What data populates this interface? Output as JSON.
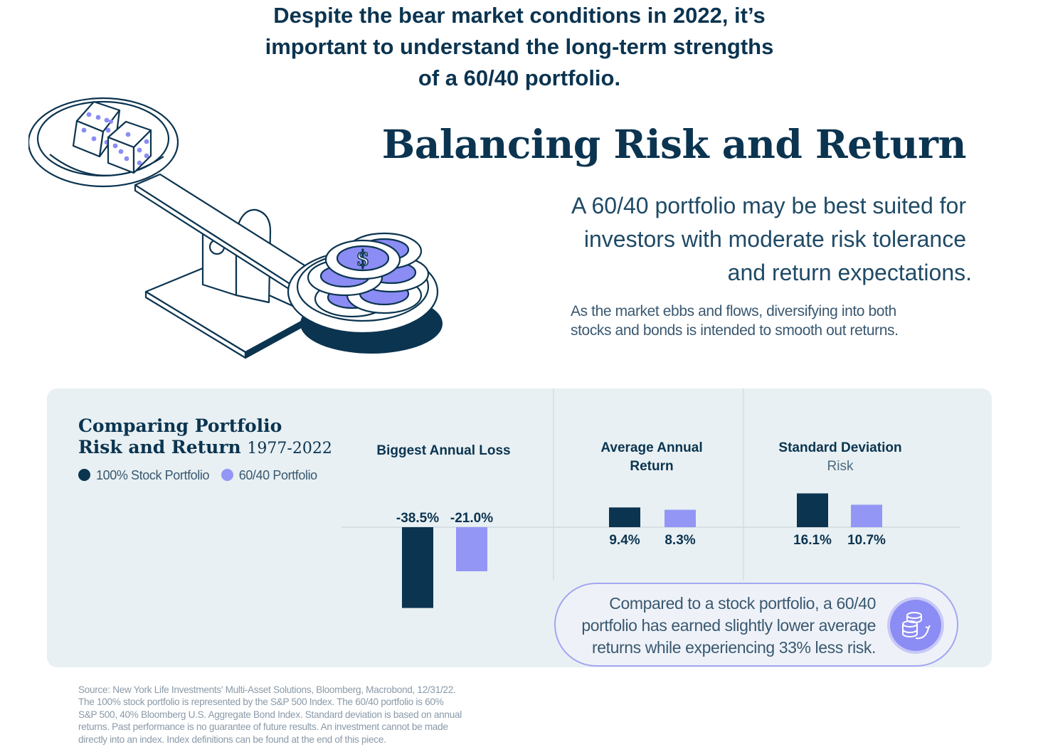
{
  "headline": {
    "line1": "Despite the bear market conditions in 2022, it’s",
    "line2": "important to understand the long-term strengths",
    "line3": "of a 60/40 portfolio."
  },
  "title": "Balancing Risk and Return",
  "subtitle": {
    "line1": "A 60/40 portfolio may be best suited for",
    "line2": "investors with moderate risk tolerance",
    "line3": "and return expectations."
  },
  "body": {
    "line1": "As the market ebbs and flows, diversifying into both",
    "line2": "stocks and bonds is intended to smooth out returns."
  },
  "icons": {
    "illustration": "scale-with-dice-and-coins-icon",
    "callout": "coins-growth-icon"
  },
  "colors": {
    "stock": "#0b3450",
    "portfolio_6040": "#9496f5",
    "panel_bg": "#e8f0f3",
    "text_dark": "#0b3450"
  },
  "chart_data": {
    "type": "bar",
    "title": "Comparing Portfolio Risk and Return",
    "title_line1": "Comparing Portfolio",
    "title_line2": "Risk and Return",
    "period": "1977-2022",
    "legend": [
      "100% Stock Portfolio",
      "60/40 Portfolio"
    ],
    "metrics": [
      {
        "title": "Biggest Annual Loss",
        "subtitle": "",
        "title_line1": "Biggest Annual Loss",
        "title_line2": ""
      },
      {
        "title": "Average Annual Return",
        "subtitle": "",
        "title_line1": "Average Annual",
        "title_line2": "Return"
      },
      {
        "title": "Standard Deviation",
        "subtitle": "Risk",
        "title_line1": "Standard Deviation",
        "title_line2": "Risk"
      }
    ],
    "categories": [
      "Biggest Annual Loss",
      "Average Annual Return",
      "Standard Deviation"
    ],
    "series": [
      {
        "name": "100% Stock Portfolio",
        "values": [
          -38.5,
          9.4,
          16.1
        ],
        "labels": [
          "-38.5%",
          "9.4%",
          "16.1%"
        ]
      },
      {
        "name": "60/40 Portfolio",
        "values": [
          -21.0,
          8.3,
          10.7
        ],
        "labels": [
          "-21.0%",
          "8.3%",
          "10.7%"
        ]
      }
    ],
    "unit": "%"
  },
  "callout": {
    "line1": "Compared to a stock portfolio, a 60/40",
    "line2": "portfolio has earned slightly lower average",
    "line3": "returns while experiencing 33% less risk."
  },
  "source": {
    "line1": "Source: New York Life Investments’ Multi-Asset Solutions, Bloomberg, Macrobond, 12/31/22.",
    "line2": "The 100% stock portfolio is represented by the S&P 500 Index. The 60/40 portfolio is 60%",
    "line3": "S&P 500, 40% Bloomberg U.S. Aggregate Bond Index. Standard deviation is based on annual",
    "line4": "returns. Past performance is no guarantee of future results. An investment cannot be made",
    "line5": "directly into an index. Index definitions can be found at the end of this piece."
  }
}
